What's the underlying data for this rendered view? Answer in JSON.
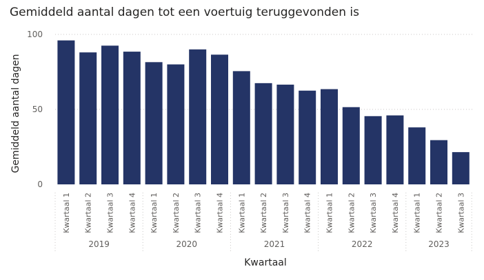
{
  "chart_data": {
    "type": "bar",
    "title": "Gemiddeld aantal dagen tot een voertuig teruggevonden is",
    "xlabel": "Kwartaal",
    "ylabel": "Gemiddeld aantal dagen",
    "ylim": [
      0,
      100
    ],
    "yticks": [
      "0",
      "50",
      "100"
    ],
    "grid": true,
    "bar_color": "#243466",
    "groups": [
      {
        "year": "2019",
        "categories": [
          "Kwartaal 1",
          "Kwartaal 2",
          "Kwartaal 3",
          "Kwartaal 4"
        ],
        "values": [
          96,
          88,
          92.5,
          88.5
        ]
      },
      {
        "year": "2020",
        "categories": [
          "Kwartaal 1",
          "Kwartaal 2",
          "Kwartaal 3",
          "Kwartaal 4"
        ],
        "values": [
          81.5,
          80,
          90,
          86.5
        ]
      },
      {
        "year": "2021",
        "categories": [
          "Kwartaal 1",
          "Kwartaal 2",
          "Kwartaal 3",
          "Kwartaal 4"
        ],
        "values": [
          75.5,
          67.5,
          66.5,
          62.5
        ]
      },
      {
        "year": "2022",
        "categories": [
          "Kwartaal 1",
          "Kwartaal 2",
          "Kwartaal 3",
          "Kwartaal 4"
        ],
        "values": [
          63.5,
          51.5,
          45.5,
          46
        ]
      },
      {
        "year": "2023",
        "categories": [
          "Kwartaal 1",
          "Kwartaal 2",
          "Kwartaal 3"
        ],
        "values": [
          38,
          29.5,
          21.5
        ]
      }
    ]
  }
}
